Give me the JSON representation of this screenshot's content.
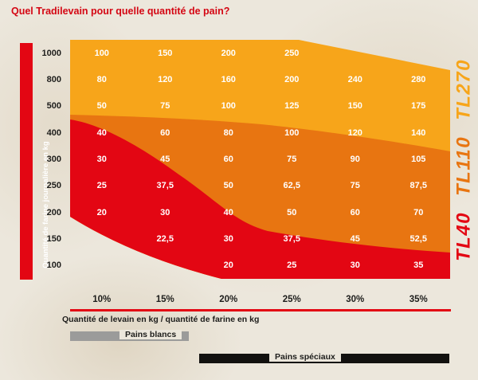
{
  "title": "Quel Tradilevain pour quelle quantité de pain?",
  "axes": {
    "y_label": "Quantité de farine journalière en kg",
    "x_label": "Quantité de levain en kg / quantité de farine en kg"
  },
  "products": [
    {
      "name": "TL40",
      "color": "#e30613"
    },
    {
      "name": "TL110",
      "color": "#e87511"
    },
    {
      "name": "TL270",
      "color": "#f7a51a"
    }
  ],
  "legend": [
    {
      "label": "Pains blancs",
      "color": "#9b9b9a"
    },
    {
      "label": "Pains spéciaux",
      "color": "#12110f"
    }
  ],
  "chart_data": {
    "type": "heatmap",
    "title": "Quel Tradilevain pour quelle quantité de pain?",
    "y_label": "Quantité de farine journalière en kg",
    "x_label": "Quantité de levain en kg / quantité de farine en kg",
    "y_categories": [
      "1000",
      "800",
      "500",
      "400",
      "300",
      "250",
      "200",
      "150",
      "100"
    ],
    "x_categories": [
      "10%",
      "15%",
      "20%",
      "25%",
      "30%",
      "35%"
    ],
    "cell_values": [
      [
        "100",
        "150",
        "200",
        "250",
        null,
        null
      ],
      [
        "80",
        "120",
        "160",
        "200",
        "240",
        "280"
      ],
      [
        "50",
        "75",
        "100",
        "125",
        "150",
        "175"
      ],
      [
        "40",
        "60",
        "80",
        "100",
        "120",
        "140"
      ],
      [
        "30",
        "45",
        "60",
        "75",
        "90",
        "105"
      ],
      [
        "25",
        "37,5",
        "50",
        "62,5",
        "75",
        "87,5"
      ],
      [
        "20",
        "30",
        "40",
        "50",
        "60",
        "70"
      ],
      [
        null,
        "22,5",
        "30",
        "37,5",
        "45",
        "52,5"
      ],
      [
        null,
        null,
        "20",
        "25",
        "30",
        "35"
      ]
    ],
    "zones": [
      {
        "product": "TL270",
        "color": "#f7a51a",
        "area": "top (large levain quantities)"
      },
      {
        "product": "TL110",
        "color": "#e87511",
        "area": "middle diagonal band"
      },
      {
        "product": "TL40",
        "color": "#e30613",
        "area": "bottom-left (small levain quantities)"
      }
    ],
    "legend": [
      {
        "label": "Pains blancs",
        "range": "10%–20%"
      },
      {
        "label": "Pains spéciaux",
        "range": "20%–35%"
      }
    ]
  }
}
